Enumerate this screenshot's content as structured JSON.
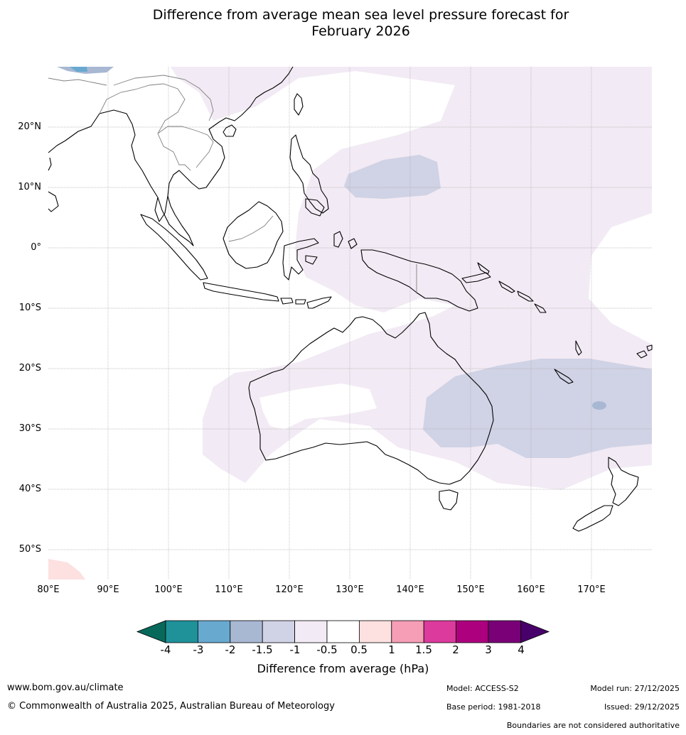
{
  "title_line1": "Difference from average mean sea level pressure forecast for",
  "title_line2": "February 2026",
  "lat_labels": [
    "20°N",
    "10°N",
    "0°",
    "10°S",
    "20°S",
    "30°S",
    "40°S",
    "50°S"
  ],
  "lon_labels": [
    "80°E",
    "90°E",
    "100°E",
    "110°E",
    "120°E",
    "130°E",
    "140°E",
    "150°E",
    "160°E",
    "170°E"
  ],
  "map_extent": {
    "lon_min": 80,
    "lon_max": 180,
    "lat_min": -55,
    "lat_max": 30
  },
  "colorbar": {
    "label": "Difference from average (hPa)",
    "ticks": [
      "-4",
      "-3",
      "-2",
      "-1.5",
      "-1",
      "-0.5",
      "0.5",
      "1",
      "1.5",
      "2",
      "3",
      "4"
    ],
    "colors": {
      "below_min": "#07695a",
      "bins": [
        "#1e9199",
        "#68a9d0",
        "#a8b8d3",
        "#d0d2e5",
        "#f2eaf4",
        "#ffffff",
        "#fde0e0",
        "#f59eb6",
        "#dc3a9c",
        "#ac007e",
        "#7a0077"
      ],
      "above_max": "#48006a"
    }
  },
  "footer": {
    "website": "www.bom.gov.au/climate",
    "copyright": "© Commonwealth of Australia 2025, Australian Bureau of Meteorology",
    "model": "Model: ACCESS-S2",
    "base_period": "Base period: 1981-2018",
    "model_run": "Model run: 27/12/2025",
    "issued": "Issued: 29/12/2025",
    "disclaimer": "Boundaries are not considered authoritative"
  }
}
